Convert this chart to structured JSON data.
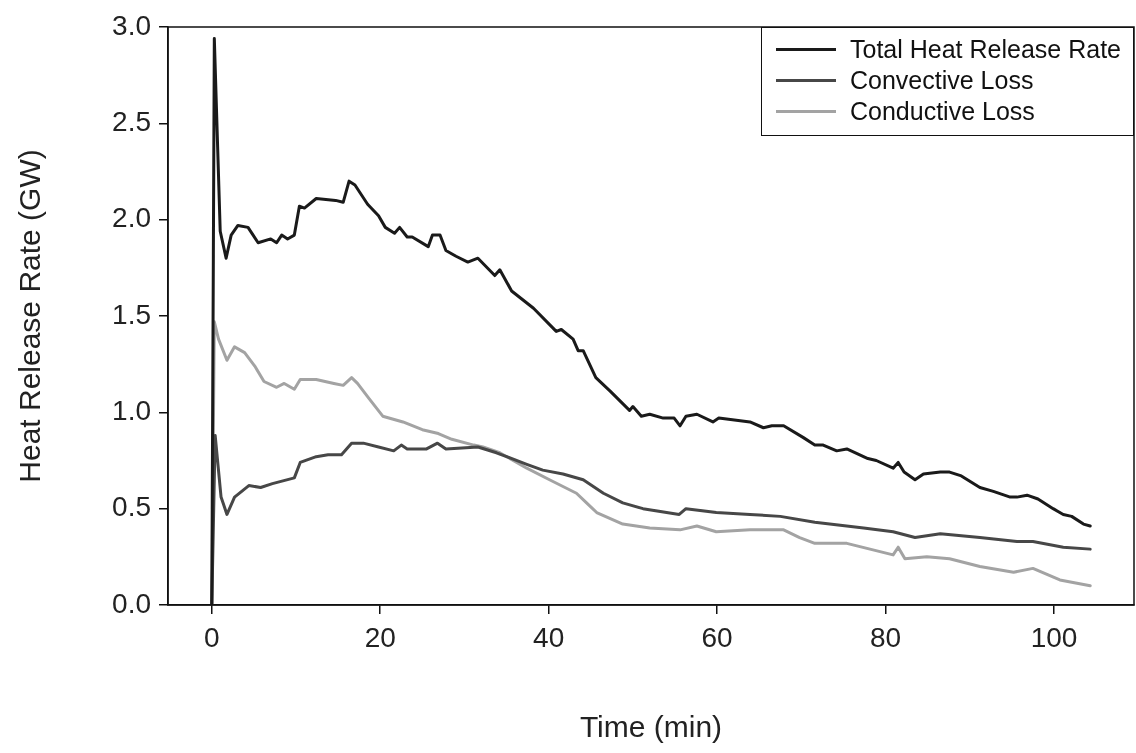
{
  "chart_data": {
    "type": "line",
    "xlabel": "Time (min)",
    "ylabel": "Heat Release Rate (GW)",
    "xlim": [
      -5.2,
      109.5
    ],
    "xticks": [
      0,
      20,
      40,
      60,
      80,
      100
    ],
    "ylim": [
      0,
      3
    ],
    "yticks": [
      {
        "value": 0,
        "label": "0.0"
      },
      {
        "value": 0.5,
        "label": "0.5"
      },
      {
        "value": 1,
        "label": "1.0"
      },
      {
        "value": 1.5,
        "label": "1.5"
      },
      {
        "value": 2,
        "label": "2.0"
      },
      {
        "value": 2.5,
        "label": "2.5"
      },
      {
        "value": 3,
        "label": "3.0"
      }
    ],
    "legend": "top right",
    "marker": "none",
    "line_style": "solid",
    "series": [
      {
        "name": "Total Heat Release Rate",
        "color": "#1a1a1a",
        "x": [
          0,
          0.3,
          1.0,
          1.7,
          2.3,
          3.1,
          4.3,
          5.5,
          7.0,
          7.7,
          8.3,
          9.0,
          9.8,
          10.4,
          11.0,
          12.4,
          14.7,
          15.6,
          16.3,
          17.0,
          18.5,
          19.8,
          20.6,
          21.7,
          22.3,
          23.2,
          23.8,
          25.7,
          26.2,
          27.1,
          27.8,
          29.0,
          30.4,
          31.6,
          33.6,
          34.2,
          35.6,
          38.2,
          40.9,
          41.5,
          42.9,
          43.5,
          44.1,
          45.6,
          47.3,
          49.6,
          50.0,
          51.0,
          52.0,
          53.6,
          54.9,
          55.6,
          56.3,
          57.6,
          59.5,
          60.2,
          63.9,
          65.5,
          66.5,
          67.9,
          70.2,
          71.6,
          72.6,
          74.2,
          75.4,
          77.9,
          78.9,
          80.9,
          81.5,
          82.2,
          83.5,
          84.5,
          86.5,
          87.6,
          89.0,
          91.2,
          92.8,
          94.8,
          95.6,
          96.8,
          98.1,
          99.9,
          101.1,
          102.1,
          103.5,
          104.3
        ],
        "values": [
          0,
          2.94,
          1.94,
          1.8,
          1.92,
          1.97,
          1.96,
          1.88,
          1.9,
          1.88,
          1.92,
          1.9,
          1.92,
          2.07,
          2.06,
          2.11,
          2.1,
          2.09,
          2.2,
          2.18,
          2.08,
          2.02,
          1.96,
          1.93,
          1.96,
          1.91,
          1.91,
          1.86,
          1.92,
          1.92,
          1.84,
          1.81,
          1.78,
          1.8,
          1.71,
          1.74,
          1.63,
          1.54,
          1.42,
          1.43,
          1.38,
          1.32,
          1.32,
          1.18,
          1.11,
          1.01,
          1.03,
          0.98,
          0.99,
          0.97,
          0.97,
          0.93,
          0.98,
          0.99,
          0.95,
          0.97,
          0.95,
          0.92,
          0.93,
          0.93,
          0.87,
          0.83,
          0.83,
          0.8,
          0.81,
          0.76,
          0.75,
          0.71,
          0.74,
          0.69,
          0.65,
          0.68,
          0.69,
          0.69,
          0.67,
          0.61,
          0.59,
          0.56,
          0.56,
          0.57,
          0.55,
          0.5,
          0.47,
          0.46,
          0.42,
          0.41
        ]
      },
      {
        "name": "Convective Loss",
        "color": "#474747",
        "x": [
          0,
          0.4,
          1.1,
          1.8,
          2.7,
          4.4,
          5.8,
          7.2,
          9.8,
          10.5,
          12.4,
          13.8,
          15.4,
          16.6,
          18.0,
          19.8,
          21.6,
          22.5,
          23.2,
          25.5,
          26.8,
          27.8,
          31.6,
          33.8,
          37.4,
          39.3,
          41.7,
          44.1,
          46.5,
          48.8,
          51.2,
          54.0,
          55.5,
          56.3,
          59.9,
          63.9,
          67.5,
          71.6,
          77.4,
          80.9,
          83.5,
          86.5,
          91.2,
          95.6,
          97.5,
          101.1,
          104.3
        ],
        "values": [
          0,
          0.88,
          0.56,
          0.47,
          0.56,
          0.62,
          0.61,
          0.63,
          0.66,
          0.74,
          0.77,
          0.78,
          0.78,
          0.84,
          0.84,
          0.82,
          0.8,
          0.83,
          0.81,
          0.81,
          0.84,
          0.81,
          0.82,
          0.79,
          0.73,
          0.7,
          0.68,
          0.65,
          0.58,
          0.53,
          0.5,
          0.48,
          0.47,
          0.5,
          0.48,
          0.47,
          0.46,
          0.43,
          0.4,
          0.38,
          0.35,
          0.37,
          0.35,
          0.33,
          0.33,
          0.3,
          0.29
        ]
      },
      {
        "name": "Conductive Loss",
        "color": "#a3a3a3",
        "x": [
          0,
          0.3,
          0.8,
          1.8,
          2.7,
          3.9,
          5.1,
          6.2,
          7.7,
          8.6,
          9.8,
          10.5,
          12.4,
          14.5,
          15.6,
          16.6,
          17.3,
          18.7,
          20.3,
          22.7,
          25.0,
          26.9,
          28.5,
          31.1,
          32.2,
          34.2,
          37.4,
          40.1,
          43.3,
          44.5,
          45.7,
          48.8,
          52.0,
          55.6,
          57.6,
          59.9,
          63.9,
          67.9,
          69.8,
          71.6,
          75.4,
          80.9,
          81.5,
          82.3,
          84.9,
          87.6,
          91.2,
          95.2,
          97.5,
          100.7,
          104.3
        ],
        "values": [
          0,
          1.47,
          1.38,
          1.27,
          1.34,
          1.31,
          1.24,
          1.16,
          1.13,
          1.15,
          1.12,
          1.17,
          1.17,
          1.15,
          1.14,
          1.18,
          1.15,
          1.07,
          0.98,
          0.95,
          0.91,
          0.89,
          0.86,
          0.83,
          0.82,
          0.79,
          0.71,
          0.65,
          0.58,
          0.53,
          0.48,
          0.42,
          0.4,
          0.39,
          0.41,
          0.38,
          0.39,
          0.39,
          0.35,
          0.32,
          0.32,
          0.26,
          0.3,
          0.24,
          0.25,
          0.24,
          0.2,
          0.17,
          0.19,
          0.13,
          0.1
        ]
      }
    ]
  }
}
